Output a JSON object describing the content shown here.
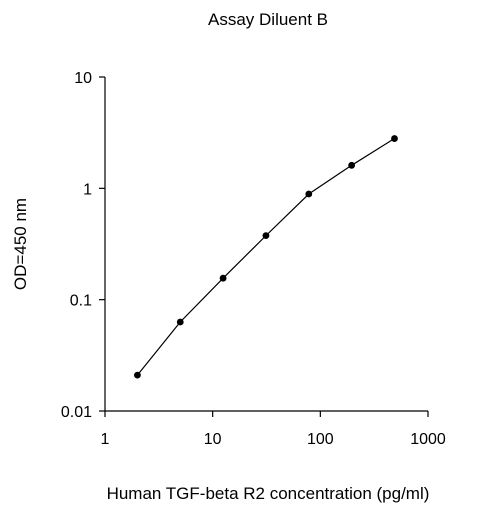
{
  "chart_data": {
    "type": "line",
    "title": "Assay Diluent B",
    "xlabel": "Human TGF-beta R2 concentration (pg/ml)",
    "ylabel": "OD=450 nm",
    "x_scale": "log",
    "y_scale": "log",
    "xlim": [
      1,
      1000
    ],
    "ylim": [
      0.01,
      10
    ],
    "x_ticks": [
      "1",
      "10",
      "100",
      "1000"
    ],
    "y_ticks": [
      "0.01",
      "0.1",
      "1",
      "10"
    ],
    "grid": false,
    "legend": "none",
    "markers": true,
    "series": [
      {
        "x": [
          2,
          5,
          12.5,
          31.25,
          78.13,
          195.31,
          488.28
        ],
        "y": [
          0.021,
          0.063,
          0.156,
          0.376,
          0.889,
          1.61,
          2.8
        ]
      }
    ],
    "colors": {
      "line": "#000000",
      "marker": "#000000",
      "axis": "#000000"
    }
  }
}
